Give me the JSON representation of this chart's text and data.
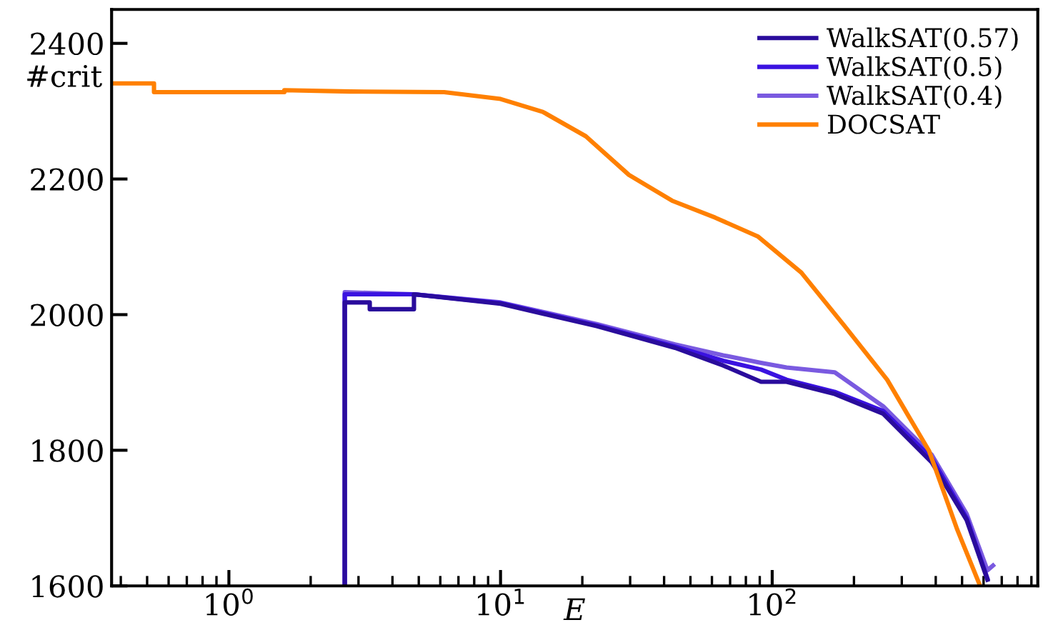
{
  "chart_data": {
    "type": "line",
    "xlabel": "E",
    "ylabel": "#crit",
    "log": "x",
    "xlim": [
      0.37,
      950
    ],
    "ylim": [
      1600,
      2450
    ],
    "xticks": [
      {
        "value": 1,
        "label": "10$^{0}$"
      },
      {
        "value": 10,
        "label": "10$^{1}$"
      },
      {
        "value": 100,
        "label": "10$^{2}$"
      }
    ],
    "yticks": [
      1600,
      1800,
      2000,
      2200,
      2400
    ],
    "grid": false,
    "legend": "top right",
    "line_style": "solid",
    "marker": "none",
    "series": [
      {
        "name": "WalkSAT(0.57)",
        "color": "#2a0c9c",
        "x": [
          2.67,
          2.67,
          3.3,
          3.3,
          4.8,
          4.8,
          10,
          22.6,
          43.9,
          66,
          91,
          113,
          170,
          256,
          387,
          520,
          620
        ],
        "values": [
          1600,
          2018,
          2018,
          2008,
          2008,
          2030,
          2016,
          1983,
          1951,
          1925,
          1901,
          1901,
          1883,
          1854,
          1782,
          1697,
          1609
        ]
      },
      {
        "name": "WalkSAT(0.5)",
        "color": "#3a12e0",
        "x": [
          2.67,
          2.67,
          4.8,
          10,
          22.6,
          43.9,
          66,
          91,
          113,
          170,
          256,
          387,
          520,
          620
        ],
        "values": [
          1600,
          2030,
          2030,
          2017,
          1984,
          1953,
          1932,
          1919,
          1904,
          1886,
          1858,
          1788,
          1700,
          1611
        ]
      },
      {
        "name": "WalkSAT(0.4)",
        "color": "#7a5ae0",
        "x": [
          2.67,
          2.67,
          4.8,
          10,
          22.6,
          43.9,
          66,
          91,
          113,
          170,
          256,
          387,
          520,
          620,
          650
        ],
        "values": [
          1600,
          2033,
          2030,
          2018,
          1986,
          1956,
          1940,
          1929,
          1922,
          1915,
          1865,
          1793,
          1706,
          1623,
          1630
        ]
      },
      {
        "name": "DOCSAT",
        "color": "#ff8000",
        "x": [
          0.37,
          0.53,
          0.53,
          1.6,
          1.6,
          2.8,
          6.2,
          10,
          14.3,
          20.6,
          29.7,
          42.8,
          61.7,
          88.8,
          128,
          184,
          265,
          378,
          480,
          580
        ],
        "values": [
          2341,
          2341,
          2328,
          2328,
          2331,
          2329,
          2328,
          2318,
          2299,
          2263,
          2206,
          2168,
          2143,
          2115,
          2062,
          1984,
          1904,
          1799,
          1683,
          1602
        ]
      }
    ]
  }
}
